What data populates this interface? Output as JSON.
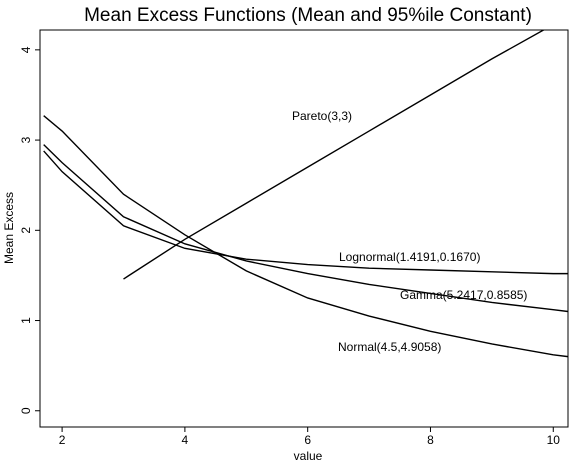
{
  "chart_data": {
    "type": "line",
    "title": "Mean Excess Functions (Mean and 95%ile Constant)",
    "x_label": "value",
    "y_label": "Mean Excess",
    "x": [
      1.7,
      2,
      3,
      4,
      5,
      6,
      7,
      8,
      9,
      10,
      10.24
    ],
    "series": [
      {
        "name": "Pareto(3,3)",
        "color": "#000000",
        "values": [
          null,
          null,
          1.46,
          1.9,
          2.3,
          2.7,
          3.1,
          3.5,
          3.9,
          4.28,
          4.38
        ]
      },
      {
        "name": "Lognormal(1.4191,0.1670)",
        "color": "#000000",
        "values": [
          2.88,
          2.65,
          2.05,
          1.8,
          1.68,
          1.62,
          1.58,
          1.56,
          1.54,
          1.52,
          1.52
        ]
      },
      {
        "name": "Gamma(5.2417,0.8585)",
        "color": "#000000",
        "values": [
          2.95,
          2.75,
          2.15,
          1.85,
          1.66,
          1.52,
          1.4,
          1.3,
          1.2,
          1.12,
          1.1
        ]
      },
      {
        "name": "Normal(4.5,4.9058)",
        "color": "#000000",
        "values": [
          3.27,
          3.1,
          2.4,
          1.95,
          1.55,
          1.25,
          1.05,
          0.88,
          0.74,
          0.62,
          0.6
        ]
      }
    ],
    "xlim": [
      1.64,
      10.24
    ],
    "ylim": [
      -0.18,
      4.22
    ],
    "xticks": [
      2,
      4,
      6,
      8,
      10
    ],
    "yticks": [
      0,
      1,
      2,
      3,
      4
    ],
    "grid": false
  }
}
